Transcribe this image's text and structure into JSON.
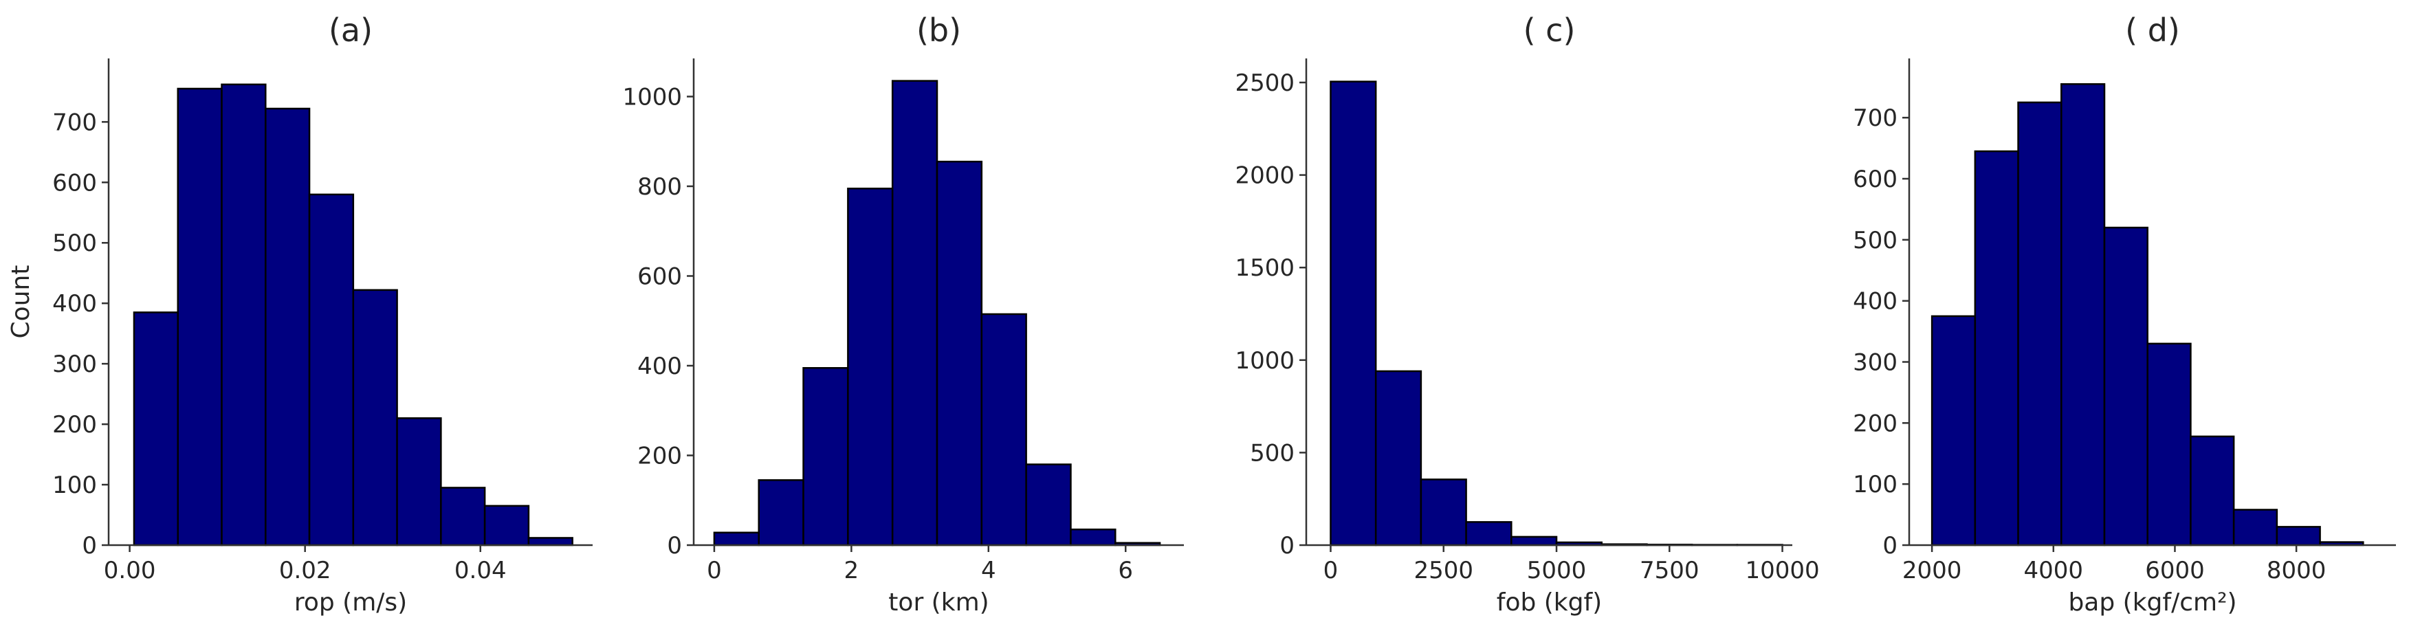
{
  "colors": {
    "bar_fill": "#000080",
    "bar_edge": "#000000",
    "axis": "#333333",
    "text": "#262626"
  },
  "chart_data": [
    {
      "type": "bar",
      "title": "(a)",
      "xlabel": "rop (m/s)",
      "ylabel": "Count",
      "xlim": [
        -0.0024,
        0.0528
      ],
      "ylim": [
        0,
        805
      ],
      "bin_edges": [
        0.0005,
        0.0055,
        0.0105,
        0.0155,
        0.0205,
        0.0255,
        0.0305,
        0.0355,
        0.0405,
        0.0455,
        0.0505
      ],
      "values": [
        385,
        755,
        762,
        722,
        580,
        422,
        210,
        95,
        65,
        12
      ],
      "xticks": [
        0.0,
        0.02,
        0.04
      ],
      "xtick_labels": [
        "0.00",
        "0.02",
        "0.04"
      ],
      "yticks": [
        0,
        100,
        200,
        300,
        400,
        500,
        600,
        700
      ],
      "ytick_labels": [
        "0",
        "100",
        "200",
        "300",
        "400",
        "500",
        "600",
        "700"
      ]
    },
    {
      "type": "bar",
      "title": "(b)",
      "xlabel": "tor (km)",
      "ylabel": "",
      "xlim": [
        -0.3,
        6.85
      ],
      "ylim": [
        0,
        1085
      ],
      "bin_edges": [
        0.0,
        0.65,
        1.3,
        1.95,
        2.6,
        3.25,
        3.9,
        4.55,
        5.2,
        5.85,
        6.5
      ],
      "values": [
        28,
        145,
        395,
        795,
        1035,
        855,
        515,
        180,
        35,
        5
      ],
      "xticks": [
        0,
        2,
        4,
        6
      ],
      "xtick_labels": [
        "0",
        "2",
        "4",
        "6"
      ],
      "yticks": [
        0,
        200,
        400,
        600,
        800,
        1000
      ],
      "ytick_labels": [
        "0",
        "200",
        "400",
        "600",
        "800",
        "1000"
      ]
    },
    {
      "type": "bar",
      "title": "( c)",
      "xlabel": "fob (kgf)",
      "ylabel": "",
      "xlim": [
        -540,
        10220
      ],
      "ylim": [
        0,
        2630
      ],
      "bin_edges": [
        0,
        1000,
        2000,
        3000,
        4000,
        5000,
        6000,
        7000,
        8000,
        9000,
        10000
      ],
      "values": [
        2505,
        940,
        355,
        125,
        45,
        15,
        5,
        3,
        2,
        2
      ],
      "xticks": [
        0,
        2500,
        5000,
        7500,
        10000
      ],
      "xtick_labels": [
        "0",
        "2500",
        "5000",
        "7500",
        "10000"
      ],
      "yticks": [
        0,
        500,
        1000,
        1500,
        2000,
        2500
      ],
      "ytick_labels": [
        "0",
        "500",
        "1000",
        "1500",
        "2000",
        "2500"
      ]
    },
    {
      "type": "bar",
      "title": "( d)",
      "xlabel": "bap (kgf/cm²)",
      "ylabel": "",
      "xlim": [
        1625,
        9640
      ],
      "ylim": [
        0,
        797
      ],
      "bin_edges": [
        2000,
        2710,
        3420,
        4130,
        4840,
        5550,
        6260,
        6970,
        7680,
        8390,
        9100
      ],
      "values": [
        375,
        645,
        725,
        755,
        520,
        330,
        178,
        58,
        30,
        5
      ],
      "xticks": [
        2000,
        4000,
        6000,
        8000
      ],
      "xtick_labels": [
        "2000",
        "4000",
        "6000",
        "8000"
      ],
      "yticks": [
        0,
        100,
        200,
        300,
        400,
        500,
        600,
        700
      ],
      "ytick_labels": [
        "0",
        "100",
        "200",
        "300",
        "400",
        "500",
        "600",
        "700"
      ]
    }
  ]
}
